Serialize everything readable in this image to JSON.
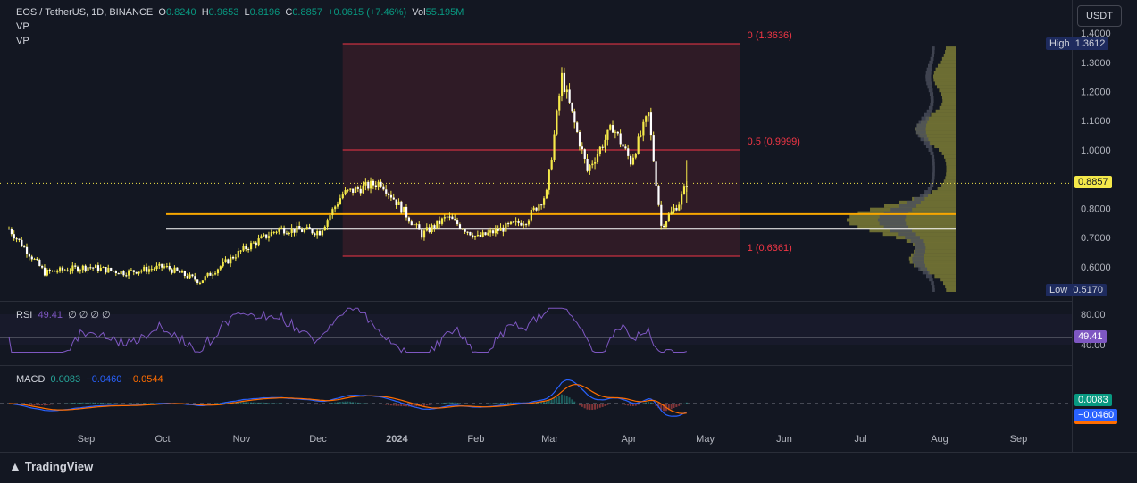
{
  "header": {
    "symbol": "EOS / TetherUS, 1D, BINANCE",
    "o_label": "O",
    "o_value": "0.8240",
    "h_label": "H",
    "h_value": "0.9653",
    "l_label": "L",
    "l_value": "0.8196",
    "c_label": "C",
    "c_value": "0.8857",
    "change": "+0.0615 (+7.46%)",
    "vol_label": "Vol",
    "vol_value": "55.195M",
    "vp1": "VP",
    "vp2": "VP"
  },
  "currency_button": "USDT",
  "price_axis": {
    "ticks": [
      "1.4000",
      "1.3000",
      "1.2000",
      "1.1000",
      "1.0000",
      "0.8000",
      "0.7000",
      "0.6000"
    ],
    "high_label": "High",
    "high_value": "1.3612",
    "low_label": "Low",
    "low_value": "0.5170",
    "last_price": "0.8857"
  },
  "fib": {
    "level_0": "0 (1.3636)",
    "level_05": "0.5 (0.9999)",
    "level_1": "1 (0.6361)"
  },
  "time_axis": [
    "Sep",
    "Oct",
    "Nov",
    "Dec",
    "2024",
    "Feb",
    "Mar",
    "Apr",
    "May",
    "Jun",
    "Jul",
    "Aug",
    "Sep"
  ],
  "rsi": {
    "label": "RSI",
    "value": "49.41",
    "params": "∅ ∅ ∅ ∅",
    "tick_80": "80.00",
    "tick_40": "40.00",
    "badge": "49.41"
  },
  "macd": {
    "label": "MACD",
    "v1": "0.0083",
    "v2": "−0.0460",
    "v3": "−0.0544",
    "badge1": "0.0083",
    "badge2": "−0.0460"
  },
  "brand": "TradingView",
  "colors": {
    "candle": "#f5e94a",
    "fib_line": "#f23645",
    "fib_box": "rgba(242,54,69,0.13)",
    "support_orange": "#f7a600",
    "support_white": "#ffffff",
    "rsi_line": "#7e57c2",
    "macd_line": "#2962ff",
    "signal_line": "#ff6d00",
    "vp": "#8b8b3a"
  },
  "chart_data": {
    "type": "candlestick",
    "y_range": [
      0.5,
      1.42
    ],
    "close_approx": [
      {
        "date": "2023-08-01",
        "close": 0.73
      },
      {
        "date": "2023-08-15",
        "close": 0.58
      },
      {
        "date": "2023-09-01",
        "close": 0.6
      },
      {
        "date": "2023-09-15",
        "close": 0.58
      },
      {
        "date": "2023-10-01",
        "close": 0.6
      },
      {
        "date": "2023-10-15",
        "close": 0.55
      },
      {
        "date": "2023-11-01",
        "close": 0.66
      },
      {
        "date": "2023-11-15",
        "close": 0.73
      },
      {
        "date": "2023-12-01",
        "close": 0.72
      },
      {
        "date": "2023-12-10",
        "close": 0.85
      },
      {
        "date": "2023-12-25",
        "close": 0.89
      },
      {
        "date": "2024-01-10",
        "close": 0.71
      },
      {
        "date": "2024-01-20",
        "close": 0.77
      },
      {
        "date": "2024-02-01",
        "close": 0.7
      },
      {
        "date": "2024-02-20",
        "close": 0.76
      },
      {
        "date": "2024-02-28",
        "close": 0.85
      },
      {
        "date": "2024-03-05",
        "close": 1.25
      },
      {
        "date": "2024-03-15",
        "close": 0.93
      },
      {
        "date": "2024-03-25",
        "close": 1.08
      },
      {
        "date": "2024-04-01",
        "close": 0.96
      },
      {
        "date": "2024-04-08",
        "close": 1.12
      },
      {
        "date": "2024-04-13",
        "close": 0.74
      },
      {
        "date": "2024-04-20",
        "close": 0.82
      },
      {
        "date": "2024-04-23",
        "close": 0.8857
      }
    ],
    "fib_levels": [
      {
        "ratio": 0,
        "price": 1.3636
      },
      {
        "ratio": 0.5,
        "price": 0.9999
      },
      {
        "ratio": 1,
        "price": 0.6361
      }
    ],
    "horizontal_lines": [
      0.78,
      0.73
    ],
    "last_price": 0.8857,
    "high": 1.3612,
    "low": 0.517
  }
}
